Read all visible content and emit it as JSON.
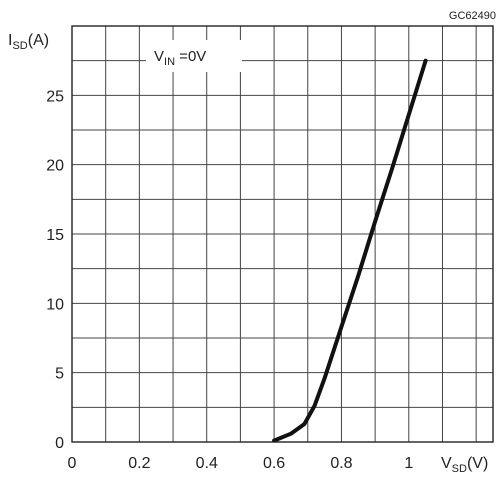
{
  "chart_data": {
    "type": "line",
    "code": "GC62490",
    "ylabel": {
      "main": "I",
      "sub": "SD",
      "unit": "(A)"
    },
    "xlabel": {
      "main": "V",
      "sub": "SD",
      "unit": "(V)"
    },
    "annotation": {
      "main": "V",
      "sub": "IN",
      "rest": " =0V"
    },
    "x_ticks": [
      {
        "value": 0,
        "label": "0"
      },
      {
        "value": 0.2,
        "label": "0.2"
      },
      {
        "value": 0.4,
        "label": "0.4"
      },
      {
        "value": 0.6,
        "label": "0.6"
      },
      {
        "value": 0.8,
        "label": "0.8"
      },
      {
        "value": 1.0,
        "label": "1"
      }
    ],
    "y_ticks": [
      {
        "value": 0,
        "label": "0"
      },
      {
        "value": 5,
        "label": "5"
      },
      {
        "value": 10,
        "label": "10"
      },
      {
        "value": 15,
        "label": "15"
      },
      {
        "value": 20,
        "label": "20"
      },
      {
        "value": 25,
        "label": "25"
      }
    ],
    "xlim": [
      0,
      1.25
    ],
    "ylim": [
      0,
      30
    ],
    "grid": true,
    "x_grid_step": 0.1,
    "y_grid_step": 2.5,
    "series": [
      {
        "color": "#111111",
        "x": [
          0.6,
          0.65,
          0.69,
          0.72,
          0.75,
          0.8,
          0.85,
          0.9,
          0.95,
          1.0,
          1.05
        ],
        "y": [
          0.1,
          0.6,
          1.3,
          2.6,
          4.6,
          8.3,
          12.0,
          15.9,
          19.7,
          23.6,
          27.5
        ]
      }
    ]
  }
}
